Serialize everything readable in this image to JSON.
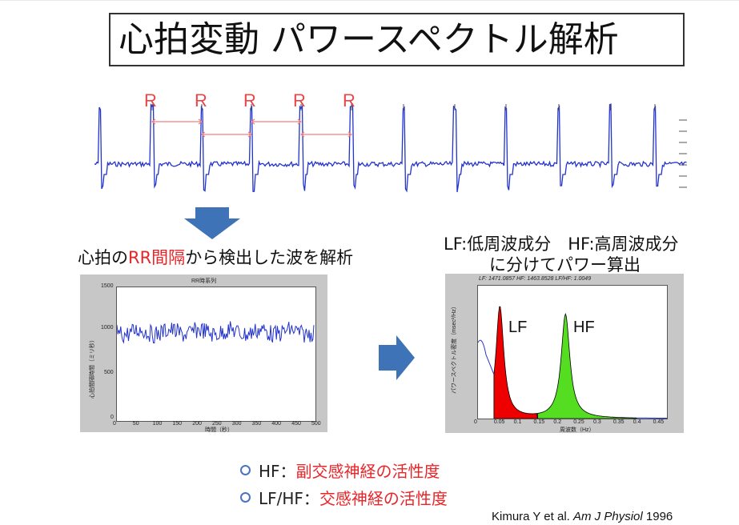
{
  "slide": {
    "title": "心拍変動 パワースペクトル解析",
    "r_label": "R",
    "caption_left_pre": "心拍の",
    "caption_left_rr": "RR間隔",
    "caption_left_post": "から検出した波を解析",
    "caption_right_line1": "LF:低周波成分　HF:高周波成分",
    "caption_right_line2": "に分けてパワー算出",
    "bullets": [
      {
        "term": "HF：",
        "desc": "副交感神経の活性度"
      },
      {
        "term": "LF/HF：",
        "desc": "交感神経の活性度"
      }
    ],
    "citation_authors": "Kimura Y et al.",
    "citation_journal": "Am J Physiol",
    "citation_year": "1996"
  },
  "left_plot": {
    "title": "RR時系列",
    "ylabel": "心拍間隔時間（ミリ秒）",
    "xlabel": "時間（秒）",
    "y_ticks": [
      "1500",
      "1000",
      "500",
      "0"
    ],
    "x_ticks": [
      "0",
      "50",
      "100",
      "150",
      "200",
      "250",
      "300",
      "350",
      "400",
      "450",
      "500"
    ]
  },
  "right_plot": {
    "title": "LF: 1471.0857  HF: 1463.8528  LF/HF: 1.0049",
    "ylabel": "パワースペクトル密度（msec²/Hz）",
    "xlabel": "周波数（Hz）",
    "x_ticks": [
      "0",
      "0.05",
      "0.1",
      "0.15",
      "0.2",
      "0.25",
      "0.3",
      "0.35",
      "0.4",
      "0.45"
    ],
    "lf_label": "LF",
    "hf_label": "HF",
    "lf_color": "#ee0000",
    "hf_color": "#55dd22"
  },
  "colors": {
    "signal": "#2233cc",
    "accent_red": "#e8262a",
    "arrow": "#3f73b8"
  }
}
